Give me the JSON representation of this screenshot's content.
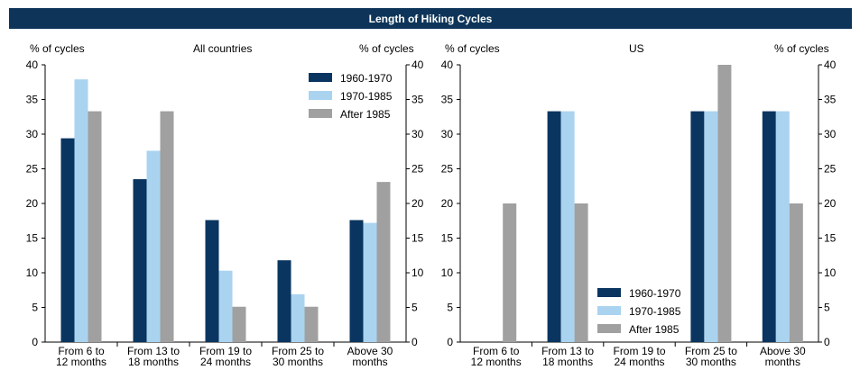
{
  "title": "Length of Hiking Cycles",
  "colors": {
    "title_bg": "#0e3559",
    "s1": "#0a3560",
    "s2": "#aad3f0",
    "s3": "#a0a0a0"
  },
  "chart_data": [
    {
      "type": "bar",
      "title": "All countries",
      "ylabel_left": "% of cycles",
      "ylabel_right": "% of cycles",
      "ylim": [
        0,
        40
      ],
      "yticks": [
        0,
        5,
        10,
        15,
        20,
        25,
        30,
        35,
        40
      ],
      "legend_position": "top-right",
      "categories": [
        "From 6 to 12 months",
        "From 13 to 18 months",
        "From 19 to 24 months",
        "From 25 to 30 months",
        "Above 30 months"
      ],
      "category_lines": [
        [
          "From 6 to",
          "12 months"
        ],
        [
          "From 13 to",
          "18 months"
        ],
        [
          "From 19 to",
          "24 months"
        ],
        [
          "From 25 to",
          "30 months"
        ],
        [
          "Above 30",
          "months"
        ]
      ],
      "series": [
        {
          "name": "1960-1970",
          "values": [
            29.4,
            23.5,
            17.6,
            11.8,
            17.6
          ]
        },
        {
          "name": "1970-1985",
          "values": [
            37.9,
            27.6,
            10.3,
            6.9,
            17.2
          ]
        },
        {
          "name": "After 1985",
          "values": [
            33.3,
            33.3,
            5.1,
            5.1,
            23.1
          ]
        }
      ]
    },
    {
      "type": "bar",
      "title": "US",
      "ylabel_left": "% of cycles",
      "ylabel_right": "% of cycles",
      "ylim": [
        0,
        40
      ],
      "yticks": [
        0,
        5,
        10,
        15,
        20,
        25,
        30,
        35,
        40
      ],
      "legend_position": "bottom-center",
      "categories": [
        "From 6 to 12 months",
        "From 13 to 18 months",
        "From 19 to 24 months",
        "From 25 to 30 months",
        "Above 30 months"
      ],
      "category_lines": [
        [
          "From 6 to",
          "12 months"
        ],
        [
          "From 13 to",
          "18 months"
        ],
        [
          "From 19 to",
          "24 months"
        ],
        [
          "From 25 to",
          "30 months"
        ],
        [
          "Above 30",
          "months"
        ]
      ],
      "series": [
        {
          "name": "1960-1970",
          "values": [
            0,
            33.3,
            0,
            33.3,
            33.3
          ]
        },
        {
          "name": "1970-1985",
          "values": [
            0,
            33.3,
            0,
            33.3,
            33.3
          ]
        },
        {
          "name": "After 1985",
          "values": [
            20,
            20,
            0,
            40,
            20
          ]
        }
      ]
    }
  ]
}
